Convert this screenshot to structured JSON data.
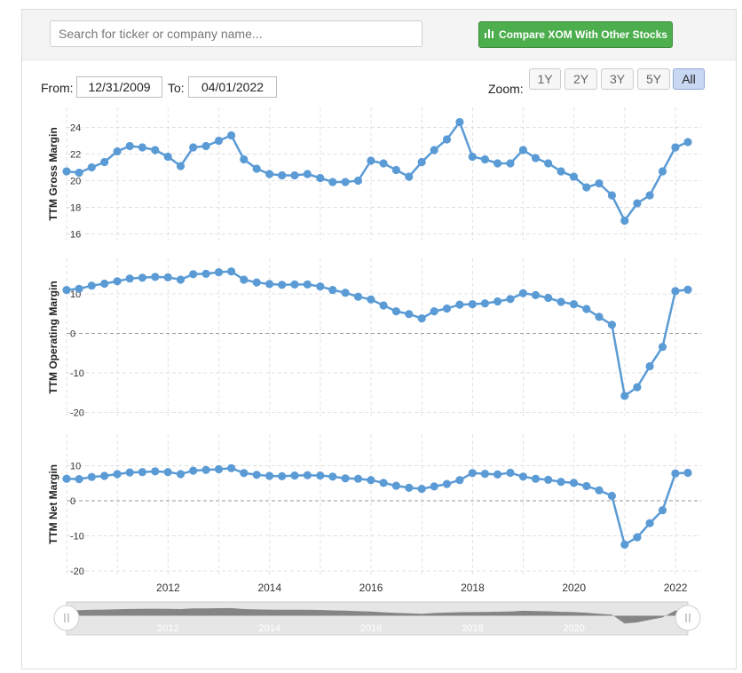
{
  "search": {
    "placeholder": "Search for ticker or company name..."
  },
  "compare_button": {
    "label": "Compare XOM With Other Stocks",
    "icon": "bar-chart-icon"
  },
  "range": {
    "from_label": "From:",
    "from_value": "12/31/2009",
    "to_label": "To:",
    "to_value": "04/01/2022"
  },
  "zoom": {
    "label": "Zoom:",
    "options": [
      "1Y",
      "2Y",
      "3Y",
      "5Y",
      "All"
    ],
    "active": "All"
  },
  "colors": {
    "series": "#5b9bd5",
    "button_green": "#4cae4c",
    "navigator_fill": "#7a7a7a"
  },
  "chart_data": [
    {
      "type": "line",
      "ylabel": "TTM Gross Margin",
      "ylim": [
        15.5,
        25.5
      ],
      "yticks": [
        16,
        18,
        20,
        22,
        24
      ],
      "x": [
        "2009-12-31",
        "2010-03-31",
        "2010-06-30",
        "2010-09-30",
        "2010-12-31",
        "2011-03-31",
        "2011-06-30",
        "2011-09-30",
        "2011-12-31",
        "2012-03-31",
        "2012-06-30",
        "2012-09-30",
        "2012-12-31",
        "2013-03-31",
        "2013-06-30",
        "2013-09-30",
        "2013-12-31",
        "2014-03-31",
        "2014-06-30",
        "2014-09-30",
        "2014-12-31",
        "2015-03-31",
        "2015-06-30",
        "2015-09-30",
        "2015-12-31",
        "2016-03-31",
        "2016-06-30",
        "2016-09-30",
        "2016-12-31",
        "2017-03-31",
        "2017-06-30",
        "2017-09-30",
        "2017-12-31",
        "2018-03-31",
        "2018-06-30",
        "2018-09-30",
        "2018-12-31",
        "2019-03-31",
        "2019-06-30",
        "2019-09-30",
        "2019-12-31",
        "2020-03-31",
        "2020-06-30",
        "2020-09-30",
        "2020-12-31",
        "2021-03-31",
        "2021-06-30",
        "2021-09-30",
        "2021-12-31",
        "2022-03-31"
      ],
      "values": [
        20.7,
        20.6,
        21.0,
        21.4,
        22.2,
        22.6,
        22.5,
        22.3,
        21.8,
        21.1,
        22.5,
        22.6,
        23.0,
        23.4,
        21.6,
        20.9,
        20.5,
        20.4,
        20.4,
        20.5,
        20.2,
        19.9,
        19.9,
        20.0,
        21.5,
        21.3,
        20.8,
        20.3,
        21.4,
        22.3,
        23.1,
        24.4,
        21.8,
        21.6,
        21.3,
        21.3,
        22.3,
        21.7,
        21.3,
        20.7,
        20.3,
        19.5,
        19.8,
        18.9,
        17.0,
        18.3,
        18.9,
        20.7,
        22.5,
        22.9
      ]
    },
    {
      "type": "line",
      "ylabel": "TTM Operating Margin",
      "ylim": [
        -21,
        19
      ],
      "yticks": [
        -20,
        -10,
        0,
        10
      ],
      "x": [
        "2009-12-31",
        "2010-03-31",
        "2010-06-30",
        "2010-09-30",
        "2010-12-31",
        "2011-03-31",
        "2011-06-30",
        "2011-09-30",
        "2011-12-31",
        "2012-03-31",
        "2012-06-30",
        "2012-09-30",
        "2012-12-31",
        "2013-03-31",
        "2013-06-30",
        "2013-09-30",
        "2013-12-31",
        "2014-03-31",
        "2014-06-30",
        "2014-09-30",
        "2014-12-31",
        "2015-03-31",
        "2015-06-30",
        "2015-09-30",
        "2015-12-31",
        "2016-03-31",
        "2016-06-30",
        "2016-09-30",
        "2016-12-31",
        "2017-03-31",
        "2017-06-30",
        "2017-09-30",
        "2017-12-31",
        "2018-03-31",
        "2018-06-30",
        "2018-09-30",
        "2018-12-31",
        "2019-03-31",
        "2019-06-30",
        "2019-09-30",
        "2019-12-31",
        "2020-03-31",
        "2020-06-30",
        "2020-09-30",
        "2020-12-31",
        "2021-03-31",
        "2021-06-30",
        "2021-09-30",
        "2021-12-31",
        "2022-03-31"
      ],
      "values": [
        11.0,
        11.3,
        12.1,
        12.6,
        13.2,
        13.9,
        14.1,
        14.3,
        14.2,
        13.6,
        15.0,
        15.1,
        15.5,
        15.7,
        13.6,
        12.9,
        12.5,
        12.3,
        12.4,
        12.4,
        11.9,
        11.0,
        10.3,
        9.3,
        8.6,
        7.1,
        5.6,
        4.9,
        3.8,
        5.6,
        6.3,
        7.3,
        7.4,
        7.6,
        8.1,
        8.7,
        10.2,
        9.7,
        9.0,
        8.0,
        7.4,
        6.2,
        4.2,
        2.2,
        -15.8,
        -13.6,
        -8.3,
        -3.4,
        10.7,
        11.1
      ]
    },
    {
      "type": "line",
      "ylabel": "TTM Net Margin",
      "ylim": [
        -21,
        19
      ],
      "yticks": [
        -20,
        -10,
        0,
        10
      ],
      "x": [
        "2009-12-31",
        "2010-03-31",
        "2010-06-30",
        "2010-09-30",
        "2010-12-31",
        "2011-03-31",
        "2011-06-30",
        "2011-09-30",
        "2011-12-31",
        "2012-03-31",
        "2012-06-30",
        "2012-09-30",
        "2012-12-31",
        "2013-03-31",
        "2013-06-30",
        "2013-09-30",
        "2013-12-31",
        "2014-03-31",
        "2014-06-30",
        "2014-09-30",
        "2014-12-31",
        "2015-03-31",
        "2015-06-30",
        "2015-09-30",
        "2015-12-31",
        "2016-03-31",
        "2016-06-30",
        "2016-09-30",
        "2016-12-31",
        "2017-03-31",
        "2017-06-30",
        "2017-09-30",
        "2017-12-31",
        "2018-03-31",
        "2018-06-30",
        "2018-09-30",
        "2018-12-31",
        "2019-03-31",
        "2019-06-30",
        "2019-09-30",
        "2019-12-31",
        "2020-03-31",
        "2020-06-30",
        "2020-09-30",
        "2020-12-31",
        "2021-03-31",
        "2021-06-30",
        "2021-09-30",
        "2021-12-31",
        "2022-03-31"
      ],
      "values": [
        6.3,
        6.2,
        6.8,
        7.1,
        7.6,
        8.1,
        8.2,
        8.4,
        8.2,
        7.6,
        8.6,
        8.8,
        9.0,
        9.3,
        7.9,
        7.4,
        7.1,
        7.0,
        7.2,
        7.3,
        7.2,
        6.9,
        6.4,
        6.3,
        5.9,
        5.1,
        4.3,
        3.7,
        3.4,
        4.1,
        4.8,
        5.9,
        7.9,
        7.7,
        7.5,
        8.0,
        6.9,
        6.3,
        6.0,
        5.4,
        5.1,
        4.2,
        3.0,
        1.4,
        -12.5,
        -10.4,
        -6.4,
        -2.7,
        7.8,
        8.0
      ]
    }
  ],
  "x_axis": {
    "tick_labels": [
      "2012",
      "2014",
      "2016",
      "2018",
      "2020",
      "2022"
    ],
    "grid": true
  },
  "navigator": {
    "tick_labels": [
      "2012",
      "2014",
      "2016",
      "2018",
      "2020"
    ]
  }
}
